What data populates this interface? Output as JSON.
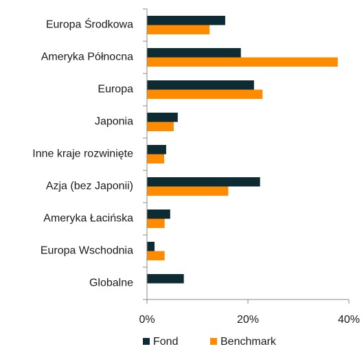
{
  "chart_data": {
    "type": "bar",
    "orientation": "horizontal",
    "categories": [
      "Europa Środkowa",
      "Ameryka Północna",
      "Europa",
      "Japonia",
      "Inne kraje rozwinięte",
      "Azja (bez Japonii)",
      "Ameryka Łacińska",
      "Europa Wschodnia",
      "Globalne"
    ],
    "series": [
      {
        "name": "Fond",
        "color": "#0d2b33",
        "values": [
          15.5,
          18.6,
          21.2,
          6.1,
          3.8,
          22.4,
          4.6,
          1.5,
          7.3
        ]
      },
      {
        "name": "Benchmark",
        "color": "#ff8c00",
        "values": [
          12.4,
          37.8,
          22.9,
          5.3,
          3.4,
          16.1,
          3.5,
          3.5,
          0
        ]
      }
    ],
    "xlim": [
      0,
      40
    ],
    "xticks": [
      {
        "value": 0,
        "label": "0%"
      },
      {
        "value": 20,
        "label": "20%"
      },
      {
        "value": 40,
        "label": "40%"
      }
    ],
    "legend": "bottom"
  }
}
